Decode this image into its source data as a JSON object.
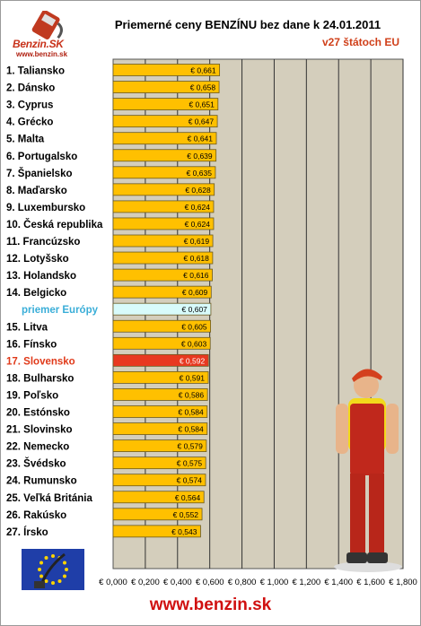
{
  "header": {
    "logo_text": "Benzin.SK",
    "logo_url": "www.benzin.sk"
  },
  "footer": {
    "url": "www.benzin.sk"
  },
  "colors": {
    "bar": "#ffc000",
    "bar_highlight": "#e83820",
    "bar_average": "#d8fbfb",
    "plot_background": "#d4cebc",
    "label_average": "#3aaed8",
    "label_highlight": "#e03a1a"
  },
  "chart_data": {
    "type": "bar",
    "orientation": "horizontal",
    "title": "Priemerné ceny BENZÍNU bez dane k 24.01.2011",
    "subtitle": "v27 štátoch EU",
    "categories": [
      "1. Taliansko",
      "2. Dánsko",
      "3. Cyprus",
      "4. Grécko",
      "5. Malta",
      "6. Portugalsko",
      "7. Španielsko",
      "8. Maďarsko",
      "9. Luxembursko",
      "10. Česká republika",
      "11. Francúzsko",
      "12. Lotyšsko",
      "13. Holandsko",
      "14. Belgicko",
      "priemer Európy",
      "15. Litva",
      "16. Fínsko",
      "17. Slovensko",
      "18. Bulharsko",
      "19. Poľsko",
      "20. Estónsko",
      "21. Slovinsko",
      "22. Nemecko",
      "23. Švédsko",
      "24. Rumunsko",
      "25. Veľká Británia",
      "26. Rakúsko",
      "27. Írsko"
    ],
    "values": [
      0.661,
      0.658,
      0.651,
      0.647,
      0.641,
      0.639,
      0.635,
      0.628,
      0.624,
      0.624,
      0.619,
      0.618,
      0.616,
      0.609,
      0.607,
      0.605,
      0.603,
      0.592,
      0.591,
      0.586,
      0.584,
      0.584,
      0.579,
      0.575,
      0.574,
      0.564,
      0.552,
      0.543
    ],
    "value_labels": [
      "€ 0,661",
      "€ 0,658",
      "€ 0,651",
      "€ 0,647",
      "€ 0,641",
      "€ 0,639",
      "€ 0,635",
      "€ 0,628",
      "€ 0,624",
      "€ 0,624",
      "€ 0,619",
      "€ 0,618",
      "€ 0,616",
      "€ 0,609",
      "€ 0,607",
      "€ 0,605",
      "€ 0,603",
      "€ 0,592",
      "€ 0,591",
      "€ 0,586",
      "€ 0,584",
      "€ 0,584",
      "€ 0,579",
      "€ 0,575",
      "€ 0,574",
      "€ 0,564",
      "€ 0,552",
      "€ 0,543"
    ],
    "average_category": "priemer Európy",
    "highlight_category": "17. Slovensko",
    "xlim": [
      0,
      1.8
    ],
    "x_ticks": [
      0,
      0.2,
      0.4,
      0.6,
      0.8,
      1.0,
      1.2,
      1.4,
      1.6,
      1.8
    ],
    "x_tick_labels": [
      "€ 0,000",
      "€ 0,200",
      "€ 0,400",
      "€ 0,600",
      "€ 0,800",
      "€ 1,000",
      "€ 1,200",
      "€ 1,400",
      "€ 1,600",
      "€ 1,800"
    ],
    "grid": true,
    "legend": "none"
  }
}
